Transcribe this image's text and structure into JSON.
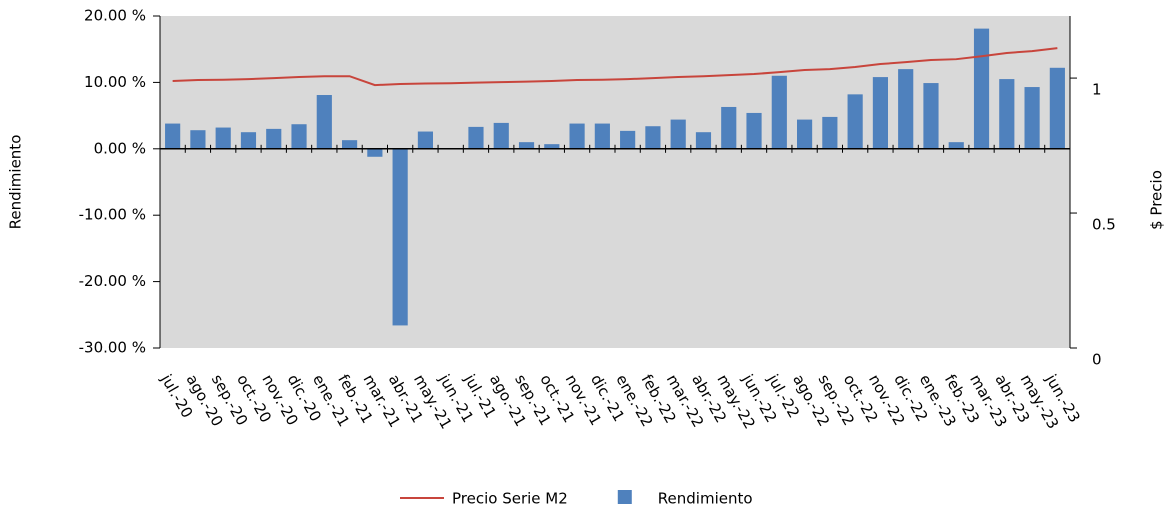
{
  "chart_data": {
    "type": "bar",
    "categories": [
      "jul.-20",
      "ago.-20",
      "sep.-20",
      "oct.-20",
      "nov.-20",
      "dic.-20",
      "ene.-21",
      "feb.-21",
      "mar.-21",
      "abr.-21",
      "may.-21",
      "jun.-21",
      "jul.-21",
      "ago.-21",
      "sep.-21",
      "oct.-21",
      "nov.-21",
      "dic.-21",
      "ene.-22",
      "feb.-22",
      "mar.-22",
      "abr.-22",
      "may.-22",
      "jun.-22",
      "jul.-22",
      "ago.-22",
      "sep.-22",
      "oct.-22",
      "nov.-22",
      "dic.-22",
      "ene.-23",
      "feb.-23",
      "mar.-23",
      "abr.-23",
      "may.-23",
      "jun.-23"
    ],
    "series": [
      {
        "name": "Precio Serie M2",
        "type": "line",
        "axis": "y2",
        "color": "#c8453c",
        "values": [
          0.989,
          0.993,
          0.994,
          0.996,
          1.0,
          1.004,
          1.007,
          1.007,
          0.974,
          0.978,
          0.98,
          0.981,
          0.983,
          0.985,
          0.987,
          0.989,
          0.993,
          0.994,
          0.996,
          1.0,
          1.004,
          1.007,
          1.011,
          1.015,
          1.022,
          1.03,
          1.033,
          1.041,
          1.052,
          1.059,
          1.067,
          1.07,
          1.081,
          1.093,
          1.1,
          1.111
        ]
      },
      {
        "name": "Rendimiento",
        "type": "bar",
        "color": "#4f81bd",
        "values": [
          3.8,
          2.8,
          3.2,
          2.5,
          3.0,
          3.7,
          8.1,
          1.3,
          -1.2,
          -26.6,
          2.6,
          0,
          3.3,
          3.9,
          1.0,
          0.7,
          3.8,
          3.8,
          2.7,
          3.4,
          4.4,
          2.5,
          6.3,
          5.4,
          11.0,
          4.4,
          4.8,
          8.2,
          10.8,
          12.0,
          9.9,
          1.0,
          18.1,
          10.5,
          9.3,
          12.2
        ]
      }
    ],
    "ylabel": "Rendimiento",
    "y2label": "$ Precio",
    "ylim": [
      -30,
      20
    ],
    "yticks": [
      {
        "value": 20,
        "label": "20.00 %"
      },
      {
        "value": 10,
        "label": "10.00 %"
      },
      {
        "value": 0,
        "label": "0.00 %"
      },
      {
        "value": -10,
        "label": "-10.00 %"
      },
      {
        "value": -20,
        "label": "-20.00 %"
      },
      {
        "value": -30,
        "label": "-30.00 %"
      }
    ],
    "y2lim": [
      0,
      1.23
    ],
    "y2ticks": [
      0,
      0.5,
      1
    ],
    "legend": "bottom"
  }
}
